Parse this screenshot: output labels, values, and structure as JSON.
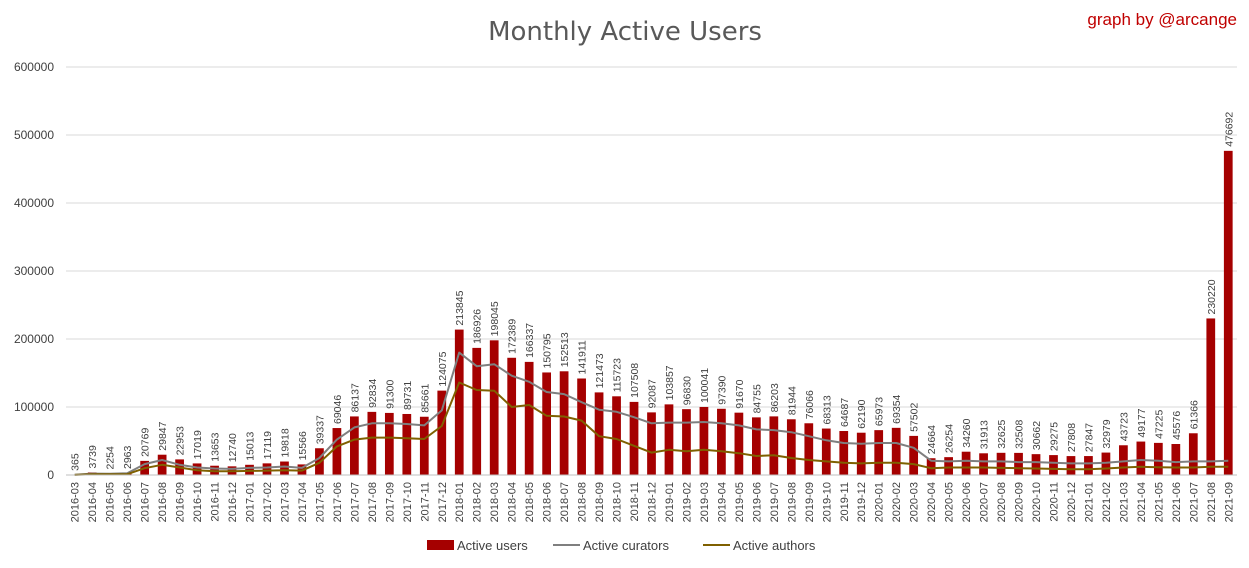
{
  "chart_data": {
    "type": "bar",
    "title": "Monthly Active Users",
    "credit": "graph by @arcange",
    "xlabel": "",
    "ylabel": "",
    "ylim": [
      0,
      600000
    ],
    "yticks": [
      0,
      100000,
      200000,
      300000,
      400000,
      500000,
      600000
    ],
    "grid": true,
    "legend_position": "bottom",
    "categories": [
      "2016-03",
      "2016-04",
      "2016-05",
      "2016-06",
      "2016-07",
      "2016-08",
      "2016-09",
      "2016-10",
      "2016-11",
      "2016-12",
      "2017-01",
      "2017-02",
      "2017-03",
      "2017-04",
      "2017-05",
      "2017-06",
      "2017-07",
      "2017-08",
      "2017-09",
      "2017-10",
      "2017-11",
      "2017-12",
      "2018-01",
      "2018-02",
      "2018-03",
      "2018-04",
      "2018-05",
      "2018-06",
      "2018-07",
      "2018-08",
      "2018-09",
      "2018-10",
      "2018-11",
      "2018-12",
      "2019-01",
      "2019-02",
      "2019-03",
      "2019-04",
      "2019-05",
      "2019-06",
      "2019-07",
      "2019-08",
      "2019-09",
      "2019-10",
      "2019-11",
      "2019-12",
      "2020-01",
      "2020-02",
      "2020-03",
      "2020-04",
      "2020-05",
      "2020-06",
      "2020-07",
      "2020-08",
      "2020-09",
      "2020-10",
      "2020-11",
      "2020-12",
      "2021-01",
      "2021-02",
      "2021-03",
      "2021-04",
      "2021-05",
      "2021-06",
      "2021-07",
      "2021-08",
      "2021-09"
    ],
    "series": [
      {
        "name": "Active users",
        "type": "bar",
        "color": "#a50000",
        "values": [
          365,
          3739,
          2254,
          2963,
          20769,
          29847,
          22953,
          17019,
          13653,
          12740,
          15013,
          17119,
          19818,
          15566,
          39337,
          69046,
          86137,
          92834,
          91300,
          89731,
          85661,
          124075,
          213845,
          186926,
          198045,
          172389,
          166337,
          150795,
          152513,
          141911,
          121473,
          115723,
          107508,
          92087,
          103857,
          96830,
          100041,
          97390,
          91670,
          84755,
          86203,
          81944,
          76066,
          68313,
          64687,
          62190,
          65973,
          69354,
          57502,
          24664,
          26254,
          34260,
          31913,
          32625,
          32508,
          30662,
          29275,
          27808,
          27847,
          32979,
          43723,
          49177,
          47225,
          45576,
          61366,
          230220,
          476692
        ]
      },
      {
        "name": "Active curators",
        "type": "line",
        "color": "#7f7f7f",
        "values": [
          300,
          2000,
          1800,
          2500,
          16000,
          22000,
          15000,
          11000,
          9500,
          9000,
          10500,
          11000,
          12500,
          10500,
          25000,
          52000,
          70000,
          76000,
          76000,
          75000,
          73000,
          95000,
          180000,
          160000,
          163000,
          146000,
          137000,
          122000,
          119000,
          107000,
          96000,
          93000,
          85000,
          76000,
          77000,
          77000,
          78000,
          76000,
          73000,
          67000,
          66000,
          63000,
          57000,
          51000,
          47000,
          46000,
          47000,
          47000,
          40000,
          21000,
          20000,
          21000,
          20000,
          20000,
          19000,
          19000,
          18000,
          17000,
          17000,
          18000,
          20000,
          22000,
          21000,
          19000,
          20000,
          20000,
          21000
        ]
      },
      {
        "name": "Active authors",
        "type": "line",
        "color": "#7f6000",
        "values": [
          200,
          1200,
          1000,
          1200,
          10000,
          15000,
          11000,
          7000,
          5500,
          5500,
          6000,
          6500,
          7000,
          6500,
          18000,
          42000,
          52000,
          55000,
          55000,
          54000,
          53000,
          72000,
          136000,
          125000,
          124000,
          100000,
          103000,
          87000,
          86000,
          80000,
          57000,
          53000,
          43000,
          33000,
          37000,
          35000,
          37000,
          35000,
          32000,
          28000,
          29000,
          25000,
          22000,
          20000,
          18000,
          17000,
          18000,
          18000,
          16000,
          10000,
          11000,
          11000,
          11000,
          10500,
          10000,
          9500,
          9000,
          8500,
          8500,
          9500,
          11000,
          12000,
          11500,
          11000,
          11000,
          12000,
          12000
        ]
      }
    ]
  }
}
